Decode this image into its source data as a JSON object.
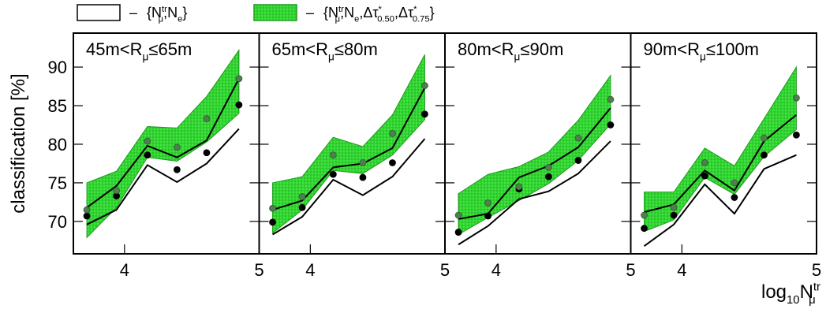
{
  "chart_data": [
    {
      "type": "band",
      "title": "45m<R_{μ}≤65m",
      "ylabel": "classification [%]",
      "x": [
        3.72,
        3.94,
        4.17,
        4.39,
        4.61,
        4.85
      ],
      "xlim": [
        3.62,
        5.0
      ],
      "xticks": [
        4,
        5
      ],
      "ylim": [
        65.8,
        94.4
      ],
      "yticks": [
        70,
        75,
        80,
        85,
        90
      ],
      "series": [
        {
          "name": "{N^{tr}_{μ},N_{e}}",
          "color": "#000000",
          "values": [
            70.7,
            73.3,
            78.6,
            76.7,
            78.9,
            85.1
          ],
          "lower": [
            69.6,
            71.5,
            77.3,
            75.1,
            77.5,
            82.0
          ],
          "upper": [
            71.8,
            74.6,
            79.8,
            78.3,
            80.5,
            88.5
          ]
        },
        {
          "name": "{N^{tr}_{μ},N_{e},Δτ^{*}_{0.50},Δτ^{*}_{0.75}}",
          "color": "#3ce83c",
          "values": [
            71.5,
            74.0,
            80.4,
            79.6,
            83.3,
            88.5
          ],
          "lower": [
            67.9,
            71.8,
            78.3,
            77.8,
            80.3,
            84.0
          ],
          "upper": [
            75.0,
            76.5,
            82.3,
            82.1,
            86.2,
            92.2
          ]
        }
      ]
    },
    {
      "type": "band",
      "title": "65m<R_{μ}≤80m",
      "x": [
        3.72,
        3.94,
        4.17,
        4.39,
        4.61,
        4.85
      ],
      "xlim": [
        3.62,
        5.0
      ],
      "xticks": [
        4,
        5
      ],
      "ylim": [
        65.8,
        94.4
      ],
      "yticks": [
        70,
        75,
        80,
        85,
        90
      ],
      "series": [
        {
          "color": "#000000",
          "values": [
            69.9,
            71.8,
            76.1,
            75.7,
            77.6,
            83.9
          ],
          "lower": [
            68.3,
            70.6,
            75.4,
            73.4,
            75.8,
            80.7
          ],
          "upper": [
            71.5,
            72.7,
            77.0,
            77.5,
            79.5,
            87.3
          ]
        },
        {
          "color": "#3ce83c",
          "values": [
            71.7,
            73.2,
            78.6,
            77.6,
            81.4,
            87.6
          ],
          "lower": [
            68.5,
            71.5,
            76.6,
            76.2,
            78.6,
            83.2
          ],
          "upper": [
            75.0,
            75.8,
            80.9,
            79.7,
            83.8,
            91.6
          ]
        }
      ]
    },
    {
      "type": "band",
      "title": "80m<R_{μ}≤90m",
      "x": [
        3.72,
        3.94,
        4.17,
        4.39,
        4.61,
        4.85
      ],
      "xlim": [
        3.62,
        5.0
      ],
      "xticks": [
        4,
        5
      ],
      "ylim": [
        65.8,
        94.4
      ],
      "yticks": [
        70,
        75,
        80,
        85,
        90
      ],
      "series": [
        {
          "color": "#000000",
          "values": [
            68.6,
            70.7,
            74.2,
            75.8,
            77.9,
            82.5
          ],
          "lower": [
            67.0,
            69.4,
            72.9,
            73.9,
            76.2,
            80.4
          ],
          "upper": [
            70.3,
            71.0,
            75.7,
            77.2,
            79.6,
            84.7
          ]
        },
        {
          "color": "#3ce83c",
          "values": [
            70.8,
            72.4,
            74.5,
            77.0,
            80.8,
            85.8
          ],
          "lower": [
            68.3,
            70.5,
            72.7,
            74.9,
            77.9,
            82.6
          ],
          "upper": [
            73.6,
            76.1,
            77.1,
            79.0,
            83.1,
            88.9
          ]
        }
      ]
    },
    {
      "type": "band",
      "title": "90m<R_{μ}≤100m",
      "xlabel": "log_{10}N^{tr}_{μ}",
      "x": [
        3.72,
        3.94,
        4.17,
        4.39,
        4.61,
        4.85
      ],
      "xlim": [
        3.62,
        5.0
      ],
      "xticks": [
        4,
        5
      ],
      "ylim": [
        65.8,
        94.4
      ],
      "yticks": [
        70,
        75,
        80,
        85,
        90
      ],
      "series": [
        {
          "color": "#000000",
          "values": [
            69.1,
            70.8,
            75.9,
            73.1,
            78.6,
            81.2
          ],
          "lower": [
            66.8,
            69.6,
            74.8,
            71.0,
            76.8,
            78.6
          ],
          "upper": [
            71.2,
            72.2,
            76.6,
            74.0,
            80.4,
            83.8
          ]
        },
        {
          "color": "#3ce83c",
          "values": [
            70.8,
            71.8,
            77.6,
            75.0,
            80.8,
            86.0
          ],
          "lower": [
            68.7,
            70.2,
            75.7,
            73.5,
            78.4,
            81.9
          ],
          "upper": [
            73.8,
            73.8,
            79.5,
            77.2,
            83.3,
            90.0
          ]
        }
      ]
    }
  ]
}
